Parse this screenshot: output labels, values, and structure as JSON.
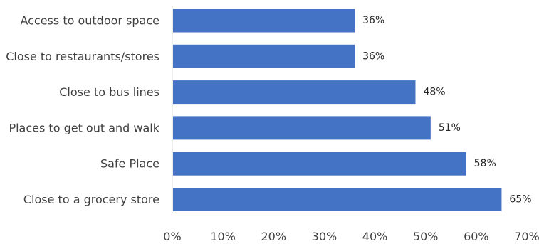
{
  "chart_data": {
    "type": "bar",
    "orientation": "horizontal",
    "title": "",
    "xlabel": "",
    "ylabel": "",
    "categories": [
      "Access to outdoor space",
      "Close to restaurants/stores",
      "Close to bus lines",
      "Places to get out and walk",
      "Safe Place",
      "Close to a grocery store"
    ],
    "values": [
      36,
      36,
      48,
      51,
      58,
      65
    ],
    "data_labels": [
      "36%",
      "36%",
      "48%",
      "51%",
      "58%",
      "65%"
    ],
    "xlim": [
      0,
      70
    ],
    "x_ticks": [
      0,
      10,
      20,
      30,
      40,
      50,
      60,
      70
    ],
    "x_tick_labels": [
      "0%",
      "10%",
      "20%",
      "30%",
      "40%",
      "50%",
      "60%",
      "70%"
    ],
    "grid": false,
    "legend": "none",
    "bar_color": "#4472C4",
    "axis_color": "#D9D9D9"
  }
}
